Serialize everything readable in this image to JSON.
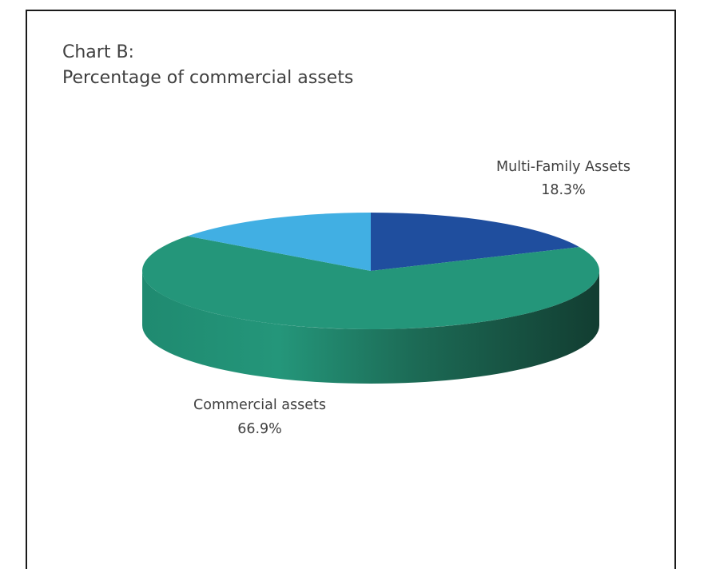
{
  "chart_data": {
    "type": "pie",
    "title_line1": "Chart B:",
    "title_line2": "Percentage of commercial assets",
    "slices": [
      {
        "label": "Multi-Family Assets",
        "value": 18.3,
        "display": "18.3%",
        "color": "#1f4e9e"
      },
      {
        "label": "Commercial assets",
        "value": 66.9,
        "display": "66.9%",
        "color": "#24967a"
      },
      {
        "label": "",
        "value": 14.8,
        "display": "",
        "color": "#41afe3"
      }
    ],
    "style": "3d"
  }
}
